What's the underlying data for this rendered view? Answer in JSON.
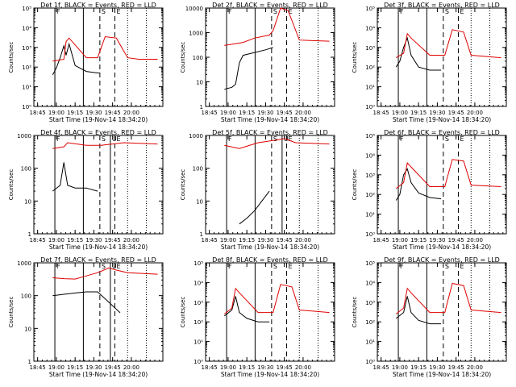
{
  "chart_data": [
    {
      "type": "line",
      "title": "Det 1f, BLACK = Events, RED = LLD",
      "xlabel": "Start Time (19-Nov-14 18:34:20)",
      "ylabel": "Counts/sec",
      "yscale": "log",
      "ylim": [
        1,
        100000
      ],
      "yticks": [
        "10⁰",
        "10¹",
        "10²",
        "10³",
        "10⁴",
        "10⁵"
      ],
      "xticks": [
        "18:45",
        "19:00",
        "19:15",
        "19:30",
        "19:45",
        "20:00"
      ],
      "markers": [
        "F",
        "S",
        "E"
      ],
      "series": [
        {
          "name": "Events",
          "color": "#000000",
          "t": [
            18.95,
            19.0,
            19.05,
            19.1,
            19.13,
            19.17,
            19.25,
            19.4,
            19.55,
            19.58
          ],
          "v": [
            40,
            90,
            300,
            1200,
            400,
            1500,
            120,
            60,
            50,
            50
          ]
        },
        {
          "name": "LLD",
          "color": "#e00000",
          "t": [
            18.95,
            19.1,
            19.13,
            19.17,
            19.4,
            19.55,
            19.65,
            19.8,
            19.95,
            20.1,
            20.35
          ],
          "v": [
            200,
            250,
            2000,
            3000,
            300,
            300,
            3500,
            3000,
            300,
            250,
            250
          ]
        }
      ]
    },
    {
      "type": "line",
      "title": "Det 2f, BLACK = Events, RED = LLD",
      "xlabel": "Start Time (19-Nov-14 18:34:20)",
      "ylabel": "Counts/sec",
      "yscale": "log",
      "ylim": [
        1,
        10000
      ],
      "yticks": [
        "1",
        "10",
        "100",
        "1000",
        "10000"
      ],
      "xticks": [
        "18:45",
        "19:00",
        "19:15",
        "19:30",
        "19:45",
        "20:00"
      ],
      "markers": [
        "F",
        "S",
        "E"
      ],
      "series": [
        {
          "name": "Events",
          "color": "#000000",
          "t": [
            18.95,
            19.05,
            19.1,
            19.15,
            19.2,
            19.5,
            19.6
          ],
          "v": [
            5,
            6,
            8,
            60,
            120,
            200,
            250
          ]
        },
        {
          "name": "LLD",
          "color": "#e00000",
          "t": [
            18.95,
            19.2,
            19.35,
            19.55,
            19.6,
            19.7,
            19.8,
            19.95,
            20.35
          ],
          "v": [
            300,
            400,
            600,
            800,
            1200,
            10000,
            8000,
            500,
            450
          ]
        }
      ]
    },
    {
      "type": "line",
      "title": "Det 3f, BLACK = Events, RED = LLD",
      "xlabel": "Start Time (19-Nov-14 18:34:20)",
      "ylabel": "Counts/sec",
      "yscale": "log",
      "ylim": [
        1,
        100000
      ],
      "yticks": [
        "10⁰",
        "10¹",
        "10²",
        "10³",
        "10⁴",
        "10⁵"
      ],
      "xticks": [
        "18:45",
        "19:00",
        "19:15",
        "19:30",
        "19:45",
        "20:00"
      ],
      "markers": [
        "F",
        "S",
        "E"
      ],
      "series": [
        {
          "name": "Events",
          "color": "#000000",
          "t": [
            18.95,
            19.0,
            19.05,
            19.1,
            19.15,
            19.25,
            19.4,
            19.55
          ],
          "v": [
            100,
            200,
            1000,
            3000,
            400,
            100,
            70,
            70
          ]
        },
        {
          "name": "LLD",
          "color": "#e00000",
          "t": [
            18.95,
            19.05,
            19.1,
            19.15,
            19.4,
            19.6,
            19.7,
            19.85,
            19.95,
            20.35
          ],
          "v": [
            300,
            500,
            5000,
            3000,
            400,
            400,
            8000,
            6000,
            400,
            300
          ]
        }
      ]
    },
    {
      "type": "line",
      "title": "Det 4f, BLACK = Events, RED = LLD",
      "xlabel": "Start Time (19-Nov-14 18:34:20)",
      "ylabel": "Counts/sec",
      "yscale": "log",
      "ylim": [
        1,
        1000
      ],
      "yticks": [
        "1",
        "10",
        "100",
        "1000"
      ],
      "xticks": [
        "18:45",
        "19:00",
        "19:15",
        "19:30",
        "19:45",
        "20:00"
      ],
      "markers": [
        "F",
        "S",
        "U",
        "E"
      ],
      "series": [
        {
          "name": "Events",
          "color": "#000000",
          "t": [
            18.95,
            19.05,
            19.1,
            19.15,
            19.25,
            19.4,
            19.55
          ],
          "v": [
            20,
            30,
            150,
            30,
            25,
            25,
            20
          ]
        },
        {
          "name": "LLD",
          "color": "#e00000",
          "t": [
            18.95,
            19.1,
            19.15,
            19.4,
            19.6,
            19.75,
            19.9,
            20.35
          ],
          "v": [
            400,
            450,
            600,
            500,
            500,
            550,
            600,
            550
          ]
        }
      ]
    },
    {
      "type": "line",
      "title": "Det 5f, BLACK = Events, RED = LLD",
      "xlabel": "Start Time (19-Nov-14 18:34:20)",
      "ylabel": "Counts/sec",
      "yscale": "log",
      "ylim": [
        1,
        1000
      ],
      "yticks": [
        "1",
        "10",
        "100",
        "1000"
      ],
      "xticks": [
        "18:45",
        "19:00",
        "19:15",
        "19:30",
        "19:45",
        "20:00"
      ],
      "markers": [
        "F",
        "S",
        "U",
        "E"
      ],
      "series": [
        {
          "name": "Events",
          "color": "#000000",
          "t": [
            19.15,
            19.25,
            19.35,
            19.45,
            19.55
          ],
          "v": [
            2,
            3,
            5,
            10,
            20
          ]
        },
        {
          "name": "LLD",
          "color": "#e00000",
          "t": [
            18.95,
            19.15,
            19.4,
            19.6,
            19.75,
            19.9,
            20.35
          ],
          "v": [
            500,
            400,
            600,
            700,
            800,
            600,
            550
          ]
        }
      ]
    },
    {
      "type": "line",
      "title": "Det 6f, BLACK = Events, RED = LLD",
      "xlabel": "Start Time (19-Nov-14 18:34:20)",
      "ylabel": "Counts/sec",
      "yscale": "log",
      "ylim": [
        1,
        100000
      ],
      "yticks": [
        "10⁰",
        "10¹",
        "10²",
        "10³",
        "10⁴",
        "10⁵"
      ],
      "xticks": [
        "18:45",
        "19:00",
        "19:15",
        "19:30",
        "19:45",
        "20:00"
      ],
      "markers": [
        "F",
        "S",
        "E"
      ],
      "series": [
        {
          "name": "Events",
          "color": "#000000",
          "t": [
            18.95,
            19.0,
            19.05,
            19.1,
            19.15,
            19.25,
            19.4,
            19.55
          ],
          "v": [
            50,
            100,
            1000,
            2000,
            400,
            120,
            70,
            60
          ]
        },
        {
          "name": "LLD",
          "color": "#e00000",
          "t": [
            18.95,
            19.05,
            19.1,
            19.15,
            19.4,
            19.6,
            19.7,
            19.85,
            19.95,
            20.35
          ],
          "v": [
            200,
            400,
            4000,
            2500,
            250,
            250,
            6000,
            5000,
            300,
            250
          ]
        }
      ]
    },
    {
      "type": "line",
      "title": "Det 7f, BLACK = Events, RED = LLD",
      "xlabel": "Start Time (19-Nov-14 18:34:20)",
      "ylabel": "Counts/sec",
      "yscale": "log",
      "ylim": [
        1,
        1000
      ],
      "yticks": [
        "1",
        "10",
        "100",
        "1000"
      ],
      "xticks": [
        "18:45",
        "19:00",
        "19:15",
        "19:30",
        "19:45",
        "20:00"
      ],
      "markers": [
        "F",
        "S",
        "U",
        "E"
      ],
      "series": [
        {
          "name": "Events",
          "color": "#000000",
          "t": [
            18.95,
            19.1,
            19.25,
            19.4,
            19.55,
            19.85
          ],
          "v": [
            100,
            110,
            120,
            130,
            130,
            30
          ]
        },
        {
          "name": "LLD",
          "color": "#e00000",
          "t": [
            18.95,
            19.1,
            19.25,
            19.4,
            19.55,
            19.7,
            19.8,
            19.95,
            20.35
          ],
          "v": [
            350,
            330,
            320,
            400,
            500,
            700,
            600,
            500,
            450
          ]
        }
      ]
    },
    {
      "type": "line",
      "title": "Det 8f, BLACK = Events, RED = LLD",
      "xlabel": "Start Time (19-Nov-14 18:34:20)",
      "ylabel": "Counts/sec",
      "yscale": "log",
      "ylim": [
        1,
        100000
      ],
      "yticks": [
        "10⁰",
        "10¹",
        "10²",
        "10³",
        "10⁴",
        "10⁵"
      ],
      "xticks": [
        "18:45",
        "19:00",
        "19:15",
        "19:30",
        "19:45",
        "20:00"
      ],
      "markers": [
        "F",
        "S",
        "E"
      ],
      "series": [
        {
          "name": "Events",
          "color": "#000000",
          "t": [
            18.95,
            19.05,
            19.1,
            19.15,
            19.25,
            19.4,
            19.55
          ],
          "v": [
            200,
            400,
            2000,
            300,
            150,
            100,
            100
          ]
        },
        {
          "name": "LLD",
          "color": "#e00000",
          "t": [
            18.95,
            19.05,
            19.1,
            19.15,
            19.4,
            19.6,
            19.7,
            19.85,
            19.95,
            20.35
          ],
          "v": [
            250,
            500,
            5000,
            3000,
            300,
            300,
            8000,
            6000,
            400,
            300
          ]
        }
      ]
    },
    {
      "type": "line",
      "title": "Det 9f, BLACK = Events, RED = LLD",
      "xlabel": "Start Time (19-Nov-14 18:34:20)",
      "ylabel": "Counts/sec",
      "yscale": "log",
      "ylim": [
        1,
        100000
      ],
      "yticks": [
        "10⁰",
        "10¹",
        "10²",
        "10³",
        "10⁴",
        "10⁵"
      ],
      "xticks": [
        "18:45",
        "19:00",
        "19:15",
        "19:30",
        "19:45",
        "20:00"
      ],
      "markers": [
        "F",
        "S",
        "E"
      ],
      "series": [
        {
          "name": "Events",
          "color": "#000000",
          "t": [
            18.95,
            19.05,
            19.1,
            19.15,
            19.25,
            19.4,
            19.55
          ],
          "v": [
            150,
            300,
            2000,
            300,
            120,
            80,
            80
          ]
        },
        {
          "name": "LLD",
          "color": "#e00000",
          "t": [
            18.95,
            19.05,
            19.1,
            19.15,
            19.4,
            19.6,
            19.7,
            19.85,
            19.95,
            20.35
          ],
          "v": [
            250,
            500,
            5000,
            3000,
            300,
            300,
            9000,
            7000,
            400,
            300
          ]
        }
      ]
    }
  ]
}
